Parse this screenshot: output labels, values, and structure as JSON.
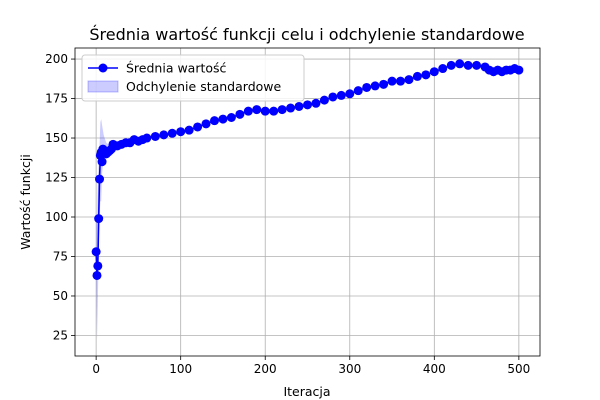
{
  "chart_data": {
    "type": "line",
    "title": "Średnia wartość funkcji celu i odchylenie standardowe",
    "xlabel": "Iteracja",
    "ylabel": "Wartość funkcji",
    "xlim": [
      -25,
      525
    ],
    "ylim": [
      12,
      207
    ],
    "xticks": [
      0,
      100,
      200,
      300,
      400,
      500
    ],
    "yticks": [
      25,
      50,
      75,
      100,
      125,
      150,
      175,
      200
    ],
    "grid": true,
    "legend_position": "upper-left",
    "series": [
      {
        "name": "Średnia wartość",
        "color": "#0000ff",
        "marker": "circle",
        "x": [
          0,
          1,
          2,
          3,
          4,
          5,
          6,
          7,
          8,
          9,
          10,
          12,
          14,
          16,
          18,
          20,
          25,
          30,
          35,
          40,
          45,
          50,
          55,
          60,
          70,
          80,
          90,
          100,
          110,
          120,
          130,
          140,
          150,
          160,
          170,
          180,
          190,
          200,
          210,
          220,
          230,
          240,
          250,
          260,
          270,
          280,
          290,
          300,
          310,
          320,
          330,
          340,
          350,
          360,
          370,
          380,
          390,
          400,
          410,
          420,
          430,
          440,
          450,
          460,
          465,
          470,
          475,
          480,
          485,
          490,
          495,
          500
        ],
        "y": [
          78,
          63,
          69,
          99,
          124,
          139,
          141,
          135,
          143,
          141,
          142,
          140,
          141,
          142,
          143,
          146,
          145,
          146,
          147,
          147,
          149,
          148,
          149,
          150,
          151,
          152,
          153,
          154,
          155,
          157,
          159,
          161,
          162,
          163,
          165,
          167,
          168,
          167,
          167,
          168,
          169,
          170,
          171,
          172,
          174,
          176,
          177,
          178,
          180,
          182,
          183,
          184,
          186,
          186,
          187,
          189,
          190,
          192,
          194,
          196,
          197,
          196,
          196,
          195,
          193,
          192,
          193,
          192,
          193,
          193,
          194,
          193
        ]
      },
      {
        "name": "Odchylenie standardowe",
        "color": "#0000ff",
        "type": "area",
        "x": [
          0,
          1,
          2,
          3,
          4,
          5,
          6,
          7,
          8,
          9,
          10,
          12,
          14,
          16,
          18,
          20,
          25,
          30
        ],
        "lower": [
          60,
          22,
          45,
          80,
          100,
          110,
          110,
          128,
          133,
          135,
          137,
          138,
          139,
          140,
          141,
          142,
          143,
          144
        ],
        "upper": [
          95,
          100,
          120,
          135,
          145,
          160,
          162,
          158,
          155,
          152,
          150,
          147,
          146,
          147,
          147,
          148,
          147,
          148
        ]
      }
    ]
  }
}
